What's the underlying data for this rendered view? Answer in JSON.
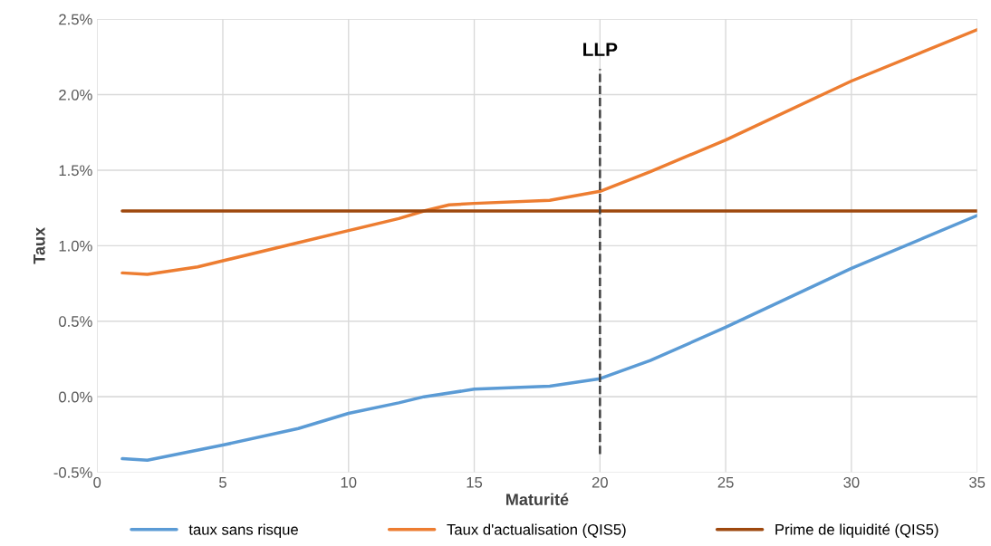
{
  "chart_data": {
    "type": "line",
    "xlabel": "Maturité",
    "ylabel": "Taux",
    "xlim": [
      0,
      35
    ],
    "xticks": [
      0,
      5,
      10,
      15,
      20,
      25,
      30,
      35
    ],
    "ylim": [
      -0.5,
      2.5
    ],
    "yticks": [
      {
        "value": -0.5,
        "label": "-0.5%"
      },
      {
        "value": 0,
        "label": "0.0%"
      },
      {
        "value": 0.5,
        "label": "0.5%"
      },
      {
        "value": 1.0,
        "label": "1.0%"
      },
      {
        "value": 1.5,
        "label": "1.5%"
      },
      {
        "value": 2.0,
        "label": "2.0%"
      },
      {
        "value": 2.5,
        "label": "2.5%"
      }
    ],
    "grid": true,
    "legend": "bottom",
    "series": [
      {
        "name": "taux sans risque",
        "color": "#5b9bd5",
        "x": [
          1,
          2,
          5,
          8,
          10,
          12,
          13,
          15,
          18,
          20,
          22,
          25,
          30,
          35
        ],
        "values": [
          -0.41,
          -0.42,
          -0.32,
          -0.21,
          -0.11,
          -0.04,
          0.0,
          0.05,
          0.07,
          0.12,
          0.24,
          0.46,
          0.85,
          1.2
        ]
      },
      {
        "name": "Taux d'actualisation (QIS5)",
        "color": "#ed7d31",
        "x": [
          1,
          2,
          4,
          5,
          8,
          10,
          12,
          13,
          14,
          15,
          18,
          20,
          22,
          25,
          30,
          35
        ],
        "values": [
          0.82,
          0.81,
          0.86,
          0.9,
          1.02,
          1.1,
          1.18,
          1.23,
          1.27,
          1.28,
          1.3,
          1.36,
          1.49,
          1.7,
          2.09,
          2.43
        ]
      },
      {
        "name": "Prime de liquidité (QIS5)",
        "color": "#9e480e",
        "x": [
          1,
          35
        ],
        "values": [
          1.23,
          1.23
        ]
      }
    ],
    "ref_lines": [
      {
        "axis": "x",
        "value": 20,
        "label": "LLP",
        "color": "#404040",
        "line_style": "dashed"
      }
    ]
  }
}
